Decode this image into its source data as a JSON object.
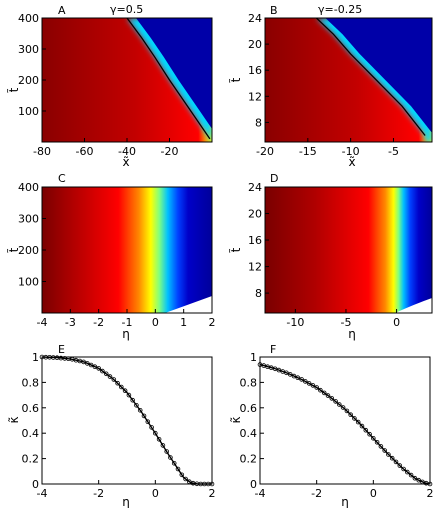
{
  "chart_data": [
    {
      "panel": "A",
      "type": "heatmap",
      "annotation": "γ=0.5",
      "xlabel": "x̃",
      "ylabel": "t̃",
      "xlim": [
        -80,
        0
      ],
      "ylim": [
        0,
        400
      ],
      "xticks": [
        -80,
        -60,
        -40,
        -20
      ],
      "yticks": [
        100,
        200,
        300,
        400
      ],
      "boundary_curve": {
        "x": [
          -1,
          -10,
          -20,
          -27,
          -33,
          -40
        ],
        "y": [
          10,
          100,
          200,
          275,
          335,
          400
        ]
      },
      "colormap": [
        "#00008f",
        "#0000ff",
        "#00ffff",
        "#ffff00",
        "#ff0000",
        "#800000"
      ]
    },
    {
      "panel": "B",
      "type": "heatmap",
      "annotation": "γ=-0.25",
      "xlabel": "x̃",
      "ylabel": "t̃",
      "xlim": [
        -20,
        -0.5
      ],
      "ylim": [
        5,
        24
      ],
      "xticks": [
        -20,
        -15,
        -10,
        -5
      ],
      "yticks": [
        8,
        12,
        16,
        20,
        24
      ],
      "boundary_curve": {
        "x": [
          -1.3,
          -4,
          -7,
          -10,
          -12,
          -14
        ],
        "y": [
          6,
          10.5,
          14.5,
          18.5,
          21.5,
          24
        ]
      }
    },
    {
      "panel": "C",
      "type": "heatmap",
      "xlabel": "η",
      "ylabel": "t̃",
      "xlim": [
        -4,
        2
      ],
      "ylim": [
        0,
        400
      ],
      "xticks": [
        -4,
        -3,
        -2,
        -1,
        0,
        1,
        2
      ],
      "yticks": [
        100,
        200,
        300,
        400
      ]
    },
    {
      "panel": "D",
      "type": "heatmap",
      "xlabel": "η",
      "ylabel": "t̃",
      "xlim": [
        -13,
        3.5
      ],
      "ylim": [
        5,
        24
      ],
      "xticks": [
        -10,
        -5,
        0
      ],
      "yticks": [
        8,
        12,
        16,
        20,
        24
      ]
    },
    {
      "panel": "E",
      "type": "line",
      "xlabel": "η",
      "ylabel": "κ̃",
      "xlim": [
        -4,
        2
      ],
      "ylim": [
        0,
        1
      ],
      "xticks": [
        -4,
        -2,
        0,
        2
      ],
      "yticks": [
        0,
        0.2,
        0.4,
        0.6,
        0.8,
        1
      ],
      "series": [
        {
          "x": [
            -4,
            -3.5,
            -3,
            -2.5,
            -2,
            -1.5,
            -1,
            -0.5,
            0,
            0.5,
            1,
            1.25,
            1.5,
            2
          ],
          "y": [
            1,
            0.995,
            0.985,
            0.96,
            0.91,
            0.83,
            0.72,
            0.57,
            0.4,
            0.22,
            0.05,
            0.01,
            0,
            0
          ]
        }
      ]
    },
    {
      "panel": "F",
      "type": "line",
      "xlabel": "η",
      "ylabel": "κ̃",
      "xlim": [
        -4,
        2
      ],
      "ylim": [
        0,
        1
      ],
      "xticks": [
        -4,
        -2,
        0,
        2
      ],
      "yticks": [
        0,
        0.2,
        0.4,
        0.6,
        0.8,
        1
      ],
      "series": [
        {
          "x": [
            -4,
            -3.5,
            -3,
            -2.5,
            -2,
            -1.5,
            -1,
            -0.5,
            0,
            0.5,
            1,
            1.5,
            1.8,
            2
          ],
          "y": [
            0.94,
            0.91,
            0.87,
            0.82,
            0.76,
            0.68,
            0.59,
            0.48,
            0.36,
            0.24,
            0.13,
            0.04,
            0.01,
            0
          ]
        }
      ]
    }
  ]
}
